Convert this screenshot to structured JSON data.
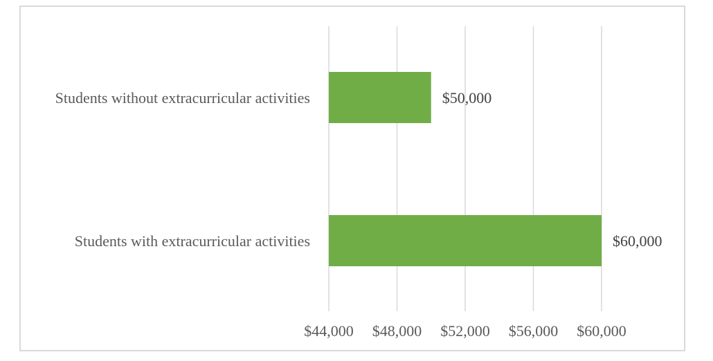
{
  "chart_data": {
    "type": "bar",
    "orientation": "horizontal",
    "title": "",
    "xlabel": "",
    "ylabel": "",
    "categories": [
      "Students without extracurricular activities",
      "Students with extracurricular activities"
    ],
    "values": [
      50000,
      60000
    ],
    "data_labels": [
      "$50,000",
      "$60,000"
    ],
    "xlim": [
      44000,
      60000
    ],
    "x_ticks": [
      44000,
      48000,
      52000,
      56000,
      60000
    ],
    "x_tick_labels": [
      "$44,000",
      "$48,000",
      "$52,000",
      "$56,000",
      "$60,000"
    ],
    "bar_color": "#70ad47",
    "grid": "vertical",
    "legend": "none"
  }
}
